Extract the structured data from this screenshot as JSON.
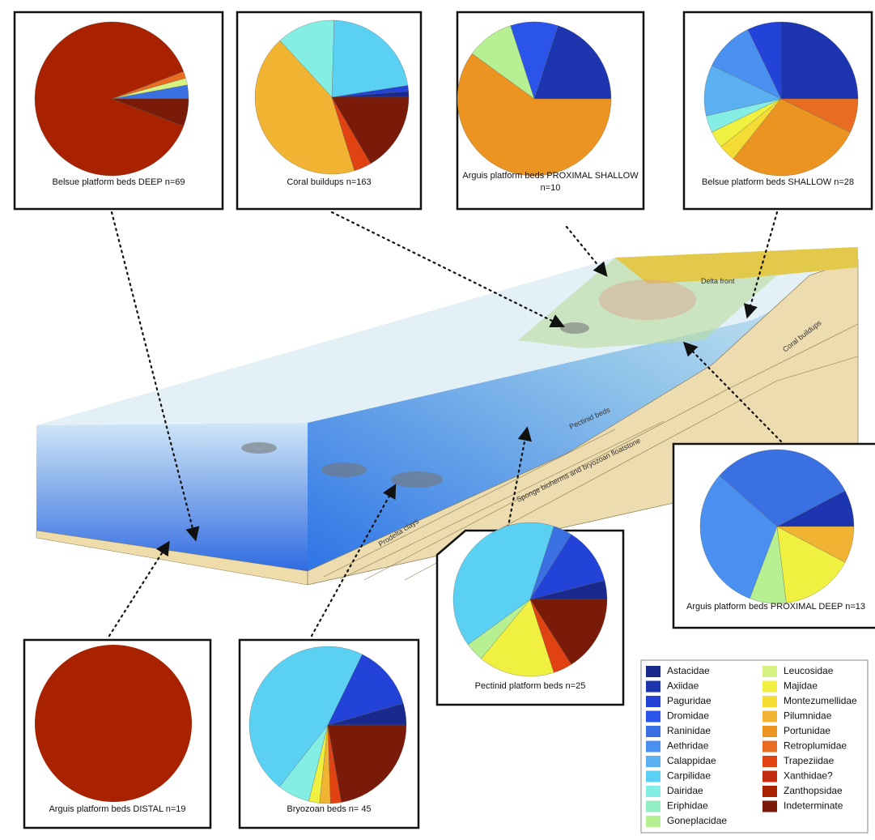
{
  "legend": {
    "items": [
      {
        "name": "Astacidae",
        "color": "#1a2a8c"
      },
      {
        "name": "Axiidae",
        "color": "#1d36b0"
      },
      {
        "name": "Paguridae",
        "color": "#2242d8"
      },
      {
        "name": "Dromidae",
        "color": "#2b55ea"
      },
      {
        "name": "Raninidae",
        "color": "#3a70e2"
      },
      {
        "name": "Aethridae",
        "color": "#4a90f0"
      },
      {
        "name": "Calappidae",
        "color": "#5ab0f0"
      },
      {
        "name": "Carpilidae",
        "color": "#5ad0f2"
      },
      {
        "name": "Dairidae",
        "color": "#84eee4"
      },
      {
        "name": "Eriphidae",
        "color": "#92eec4"
      },
      {
        "name": "Goneplacidae",
        "color": "#b6f092"
      },
      {
        "name": "Leucosidae",
        "color": "#d6f282"
      },
      {
        "name": "Majidae",
        "color": "#f0f040"
      },
      {
        "name": "Montezumellidae",
        "color": "#f4dc34"
      },
      {
        "name": "Pilumnidae",
        "color": "#f0b432"
      },
      {
        "name": "Portunidae",
        "color": "#ec9422"
      },
      {
        "name": "Retroplumidae",
        "color": "#e86c22"
      },
      {
        "name": "Trapeziidae",
        "color": "#e04212"
      },
      {
        "name": "Xanthidae?",
        "color": "#c42a10"
      },
      {
        "name": "Zanthopsidae",
        "color": "#a82200"
      },
      {
        "name": "Indeterminate",
        "color": "#7a1a08"
      }
    ]
  },
  "chart_data": [
    {
      "type": "pie",
      "title": "Belsue platform beds DEEP n=69",
      "values": [
        0,
        0,
        0,
        0,
        2,
        0,
        0,
        0,
        0,
        0,
        0,
        1,
        0,
        0,
        0,
        0,
        1,
        0,
        0,
        61,
        4
      ]
    },
    {
      "type": "pie",
      "title": "Coral buildups n=163",
      "values": [
        2,
        0,
        2,
        0,
        0,
        0,
        0,
        36,
        20,
        0,
        0,
        0,
        0,
        0,
        70,
        0,
        0,
        6,
        0,
        0,
        27
      ]
    },
    {
      "type": "pie",
      "title": "Arguis platform beds PROXIMAL SHALLOW n=10",
      "values": [
        0,
        2,
        0,
        1,
        0,
        0,
        0,
        0,
        0,
        0,
        1,
        0,
        0,
        0,
        0,
        6,
        0,
        0,
        0,
        0,
        0
      ]
    },
    {
      "type": "pie",
      "title": "Belsue platform beds SHALLOW n=28",
      "values": [
        0,
        7,
        2,
        0,
        0,
        3,
        3,
        0,
        1,
        0,
        0,
        0,
        1,
        1,
        0,
        8,
        2,
        0,
        0,
        0,
        0
      ]
    },
    {
      "type": "pie",
      "title": "Arguis platform beds PROXIMAL DEEP n=13",
      "values": [
        0,
        1,
        0,
        0,
        4,
        4,
        0,
        0,
        0,
        0,
        1,
        0,
        2,
        0,
        1,
        0,
        0,
        0,
        0,
        0,
        0
      ]
    },
    {
      "type": "pie",
      "title": "Pectinid platform beds n=25",
      "values": [
        1,
        0,
        3,
        0,
        1,
        0,
        0,
        10,
        0,
        0,
        1,
        0,
        4,
        0,
        0,
        0,
        0,
        1,
        0,
        0,
        4
      ]
    },
    {
      "type": "pie",
      "title": "Arguis platform beds DISTAL n=19",
      "values": [
        0,
        0,
        0,
        0,
        0,
        0,
        0,
        0,
        0,
        0,
        0,
        0,
        0,
        0,
        0,
        0,
        0,
        0,
        0,
        19,
        0
      ]
    },
    {
      "type": "pie",
      "title": "Bryozoan beds n= 45",
      "values": [
        2,
        0,
        6,
        0,
        0,
        0,
        0,
        21,
        3,
        0,
        0,
        0,
        1,
        0,
        1,
        0,
        0,
        1,
        0,
        0,
        10
      ]
    }
  ],
  "diagram": {
    "labels": [
      "Delta front",
      "Coral buildups",
      "Pectinid beds",
      "Sponge bioherms and bryozoan floatstone",
      "Prodelta clays"
    ]
  }
}
